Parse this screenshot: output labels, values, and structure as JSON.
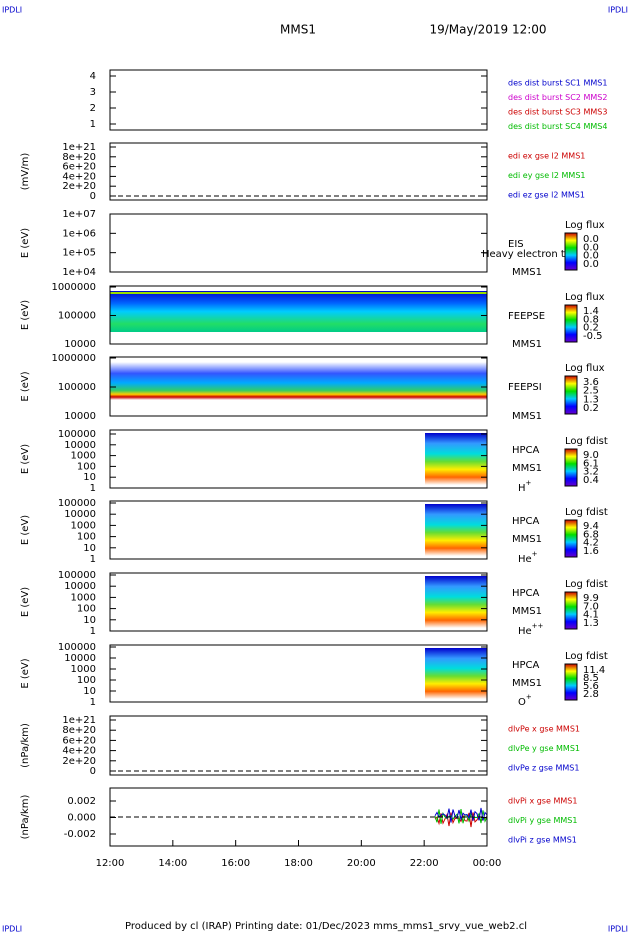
{
  "header": {
    "left": "IPDLI",
    "right": "IPDLI",
    "mission": "MMS1",
    "date": "19/May/2019 12:00"
  },
  "footer": {
    "left": "IPDLI",
    "right": "IPDLI",
    "text": "Produced by cl (IRAP)   Printing date: 01/Dec/2023   mms_mms1_srvy_vue_web2.cl"
  },
  "x_axis": {
    "ticks": [
      "12:00",
      "14:00",
      "16:00",
      "18:00",
      "20:00",
      "22:00",
      "00:00"
    ]
  },
  "panels": [
    {
      "yticks": [
        "4",
        "3",
        "2",
        "1"
      ],
      "legend": [
        {
          "text": "des dist burst SC1 MMS1",
          "color": "#0000cc"
        },
        {
          "text": "des dist burst SC2 MMS2",
          "color": "#cc00cc"
        },
        {
          "text": "des dist burst SC3 MMS3",
          "color": "#cc0000"
        },
        {
          "text": "des dist burst SC4 MMS4",
          "color": "#00bb00"
        }
      ]
    },
    {
      "ylabel": "(mV/m)",
      "yticks": [
        "1e+21",
        "8e+20",
        "6e+20",
        "4e+20",
        "2e+20",
        "0"
      ],
      "legend": [
        {
          "text": "edi ex gse l2 MMS1",
          "color": "#cc0000"
        },
        {
          "text": "edi ey gse l2 MMS1",
          "color": "#00bb00"
        },
        {
          "text": "edi ez gse l2 MMS1",
          "color": "#0000cc"
        }
      ]
    },
    {
      "ylabel": "E (eV)",
      "yticks": [
        "1e+07",
        "1e+06",
        "1e+05",
        "1e+04"
      ],
      "instrument": "EIS",
      "spacecraft": "MMS1",
      "note": "Heavy electron to",
      "colorbar": {
        "title": "Log flux",
        "ticks": [
          "0.0",
          "0.0",
          "0.0",
          "0.0"
        ]
      }
    },
    {
      "ylabel": "E (eV)",
      "yticks": [
        "1000000",
        "100000",
        "10000"
      ],
      "instrument": "FEEPSE",
      "spacecraft": "MMS1",
      "colorbar": {
        "title": "Log flux",
        "ticks": [
          "1.4",
          "0.8",
          "0.2",
          "-0.5"
        ]
      }
    },
    {
      "ylabel": "E (eV)",
      "yticks": [
        "1000000",
        "100000",
        "10000"
      ],
      "instrument": "FEEPSI",
      "spacecraft": "MMS1",
      "colorbar": {
        "title": "Log flux",
        "ticks": [
          "3.6",
          "2.5",
          "1.3",
          "0.2"
        ]
      }
    },
    {
      "ylabel": "E (eV)",
      "yticks": [
        "100000",
        "10000",
        "1000",
        "100",
        "10",
        "1"
      ],
      "instrument": "HPCA",
      "spacecraft": "MMS1",
      "species": {
        "base": "H",
        "sup": "+"
      },
      "colorbar": {
        "title": "Log fdist",
        "ticks": [
          "9.0",
          "6.1",
          "3.2",
          "0.4"
        ]
      }
    },
    {
      "ylabel": "E (eV)",
      "yticks": [
        "100000",
        "10000",
        "1000",
        "100",
        "10",
        "1"
      ],
      "instrument": "HPCA",
      "spacecraft": "MMS1",
      "species": {
        "base": "He",
        "sup": "+"
      },
      "colorbar": {
        "title": "Log fdist",
        "ticks": [
          "9.4",
          "6.8",
          "4.2",
          "1.6"
        ]
      }
    },
    {
      "ylabel": "E (eV)",
      "yticks": [
        "100000",
        "10000",
        "1000",
        "100",
        "10",
        "1"
      ],
      "instrument": "HPCA",
      "spacecraft": "MMS1",
      "species": {
        "base": "He",
        "sup": "++"
      },
      "colorbar": {
        "title": "Log fdist",
        "ticks": [
          "9.9",
          "7.0",
          "4.1",
          "1.3"
        ]
      }
    },
    {
      "ylabel": "E (eV)",
      "yticks": [
        "100000",
        "10000",
        "1000",
        "100",
        "10",
        "1"
      ],
      "instrument": "HPCA",
      "spacecraft": "MMS1",
      "species": {
        "base": "O",
        "sup": "+"
      },
      "colorbar": {
        "title": "Log fdist",
        "ticks": [
          "11.4",
          "8.5",
          "5.6",
          "2.8"
        ]
      }
    },
    {
      "ylabel": "(nPa/km)",
      "yticks": [
        "1e+21",
        "8e+20",
        "6e+20",
        "4e+20",
        "2e+20",
        "0"
      ],
      "legend": [
        {
          "text": "dlvPe x gse MMS1",
          "color": "#cc0000"
        },
        {
          "text": "dlvPe y gse MMS1",
          "color": "#00bb00"
        },
        {
          "text": "dlvPe z gse MMS1",
          "color": "#0000cc"
        }
      ]
    },
    {
      "ylabel": "(nPa/km)",
      "yticks": [
        "0.002",
        "0.000",
        "-0.002"
      ],
      "legend": [
        {
          "text": "dlvPi x gse MMS1",
          "color": "#cc0000"
        },
        {
          "text": "dlvPi y gse MMS1",
          "color": "#00bb00"
        },
        {
          "text": "dlvPi z gse MMS1",
          "color": "#0000cc"
        }
      ]
    }
  ]
}
